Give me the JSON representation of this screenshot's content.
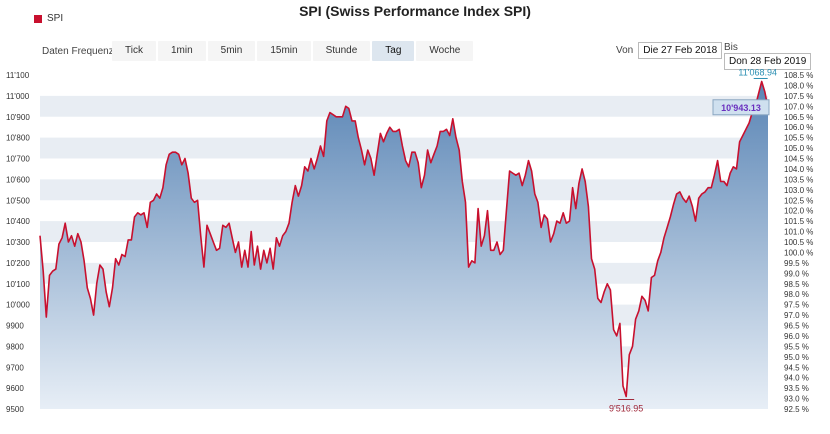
{
  "chart_data": {
    "type": "area",
    "title": "SPI (Swiss Performance Index SPI)",
    "legend": "SPI",
    "colors": {
      "line": "#c8102e",
      "area_top": "#5a85b5",
      "area_bottom": "#e7eef6",
      "grid_band": "#e8edf3",
      "high_label": "#2b8fb3",
      "low_label": "#a0293b",
      "current_label": "#6a2fbf"
    },
    "y_left": {
      "min": 9500,
      "max": 11100,
      "ticks": [
        "9500",
        "9600",
        "9700",
        "9800",
        "9900",
        "10'000",
        "10'100",
        "10'200",
        "10'300",
        "10'400",
        "10'500",
        "10'600",
        "10'700",
        "10'800",
        "10'900",
        "11'000",
        "11'100"
      ]
    },
    "y_right": {
      "ticks": [
        "92.5 %",
        "93.0 %",
        "93.5 %",
        "94.0 %",
        "94.5 %",
        "95.0 %",
        "95.5 %",
        "96.0 %",
        "96.5 %",
        "97.0 %",
        "97.5 %",
        "98.0 %",
        "98.5 %",
        "99.0 %",
        "99.5 %",
        "100.0 %",
        "100.5 %",
        "101.0 %",
        "101.5 %",
        "102.0 %",
        "102.5 %",
        "103.0 %",
        "103.5 %",
        "104.0 %",
        "104.5 %",
        "105.0 %",
        "105.5 %",
        "106.0 %",
        "106.5 %",
        "107.0 %",
        "107.5 %",
        "108.0 %",
        "108.5 %"
      ]
    },
    "annotations": {
      "high": "11'068.94",
      "low": "9'516.95",
      "current": "10'943.13"
    },
    "values": [
      10330,
      10160,
      9940,
      10140,
      10160,
      10170,
      10290,
      10320,
      10390,
      10300,
      10330,
      10280,
      10340,
      10300,
      10210,
      10080,
      10030,
      9950,
      10100,
      10190,
      10170,
      10060,
      9990,
      10080,
      10220,
      10190,
      10240,
      10230,
      10310,
      10310,
      10420,
      10440,
      10430,
      10440,
      10370,
      10490,
      10500,
      10530,
      10510,
      10560,
      10670,
      10720,
      10730,
      10730,
      10720,
      10670,
      10700,
      10630,
      10510,
      10490,
      10500,
      10330,
      10180,
      10380,
      10340,
      10300,
      10260,
      10270,
      10380,
      10370,
      10390,
      10320,
      10250,
      10300,
      10180,
      10260,
      10180,
      10350,
      10190,
      10280,
      10170,
      10260,
      10200,
      10270,
      10170,
      10320,
      10280,
      10330,
      10350,
      10390,
      10490,
      10570,
      10520,
      10570,
      10660,
      10640,
      10700,
      10650,
      10700,
      10760,
      10710,
      10880,
      10920,
      10910,
      10900,
      10900,
      10900,
      10950,
      10940,
      10880,
      10880,
      10800,
      10740,
      10670,
      10740,
      10700,
      10620,
      10720,
      10820,
      10780,
      10820,
      10850,
      10830,
      10830,
      10840,
      10760,
      10690,
      10660,
      10730,
      10730,
      10680,
      10560,
      10620,
      10740,
      10680,
      10720,
      10760,
      10830,
      10830,
      10840,
      10810,
      10890,
      10800,
      10740,
      10590,
      10490,
      10180,
      10210,
      10200,
      10460,
      10280,
      10330,
      10450,
      10260,
      10260,
      10300,
      10240,
      10260,
      10450,
      10640,
      10630,
      10620,
      10630,
      10570,
      10620,
      10690,
      10640,
      10530,
      10490,
      10370,
      10430,
      10410,
      10300,
      10340,
      10400,
      10390,
      10440,
      10390,
      10400,
      10560,
      10460,
      10580,
      10650,
      10590,
      10470,
      10220,
      10170,
      10030,
      10010,
      10060,
      10100,
      10070,
      9880,
      9850,
      9910,
      9610,
      9560,
      9760,
      9800,
      9930,
      9970,
      10040,
      10020,
      9970,
      10130,
      10140,
      10210,
      10250,
      10320,
      10370,
      10420,
      10480,
      10530,
      10540,
      10510,
      10490,
      10520,
      10470,
      10400,
      10510,
      10530,
      10540,
      10560,
      10560,
      10620,
      10690,
      10590,
      10590,
      10570,
      10630,
      10660,
      10650,
      10780,
      10810,
      10840,
      10870,
      10920,
      10950,
      11010,
      11069,
      11020,
      10943
    ]
  },
  "toolbar": {
    "frequency_label": "Daten Frequenz",
    "buttons": [
      "Tick",
      "1min",
      "5min",
      "15min",
      "Stunde",
      "Tag",
      "Woche"
    ],
    "active": "Tag",
    "from_label": "Von",
    "from_value": "Die 27 Feb 2018",
    "to_label": "Bis",
    "to_value": "Don 28 Feb 2019"
  }
}
